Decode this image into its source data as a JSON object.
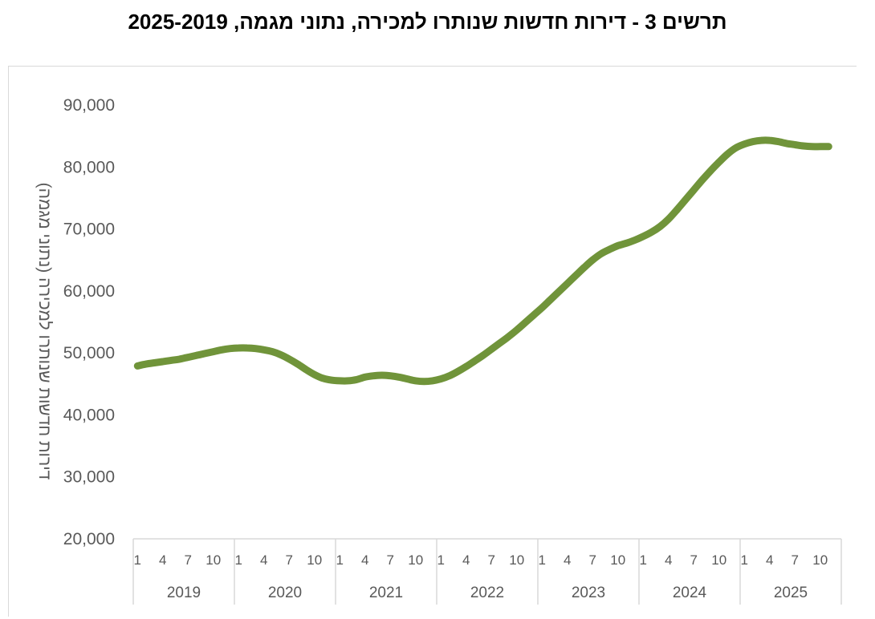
{
  "title": "תרשים 3 - דירות חדשות שנותרו למכירה, נתוני מגמה, 2025-2019",
  "chart_data": {
    "type": "line",
    "title": "תרשים 3 - דירות חדשות שנותרו למכירה, נתוני מגמה, 2025-2019",
    "ylabel": "דירות חדשות שנותרו למכירה (נתוני מגמה)",
    "xlabel": "",
    "ylim": [
      20000,
      90000
    ],
    "yticks": [
      "90,000",
      "80,000",
      "70,000",
      "60,000",
      "50,000",
      "40,000",
      "30,000",
      "20,000"
    ],
    "grid": false,
    "line_color": "#70943a",
    "years": [
      "2019",
      "2020",
      "2021",
      "2022",
      "2023",
      "2024",
      "2025"
    ],
    "month_ticks": [
      "1",
      "4",
      "7",
      "10"
    ],
    "series": [
      {
        "x": [
          "2019-01",
          "2019-02",
          "2019-03",
          "2019-04",
          "2019-05",
          "2019-06",
          "2019-07",
          "2019-08",
          "2019-09",
          "2019-10",
          "2019-11",
          "2019-12",
          "2020-01",
          "2020-02",
          "2020-03",
          "2020-04",
          "2020-05",
          "2020-06",
          "2020-07",
          "2020-08",
          "2020-09",
          "2020-10",
          "2020-11",
          "2020-12",
          "2021-01",
          "2021-02",
          "2021-03",
          "2021-04",
          "2021-05",
          "2021-06",
          "2021-07",
          "2021-08",
          "2021-09",
          "2021-10",
          "2021-11",
          "2021-12",
          "2022-01",
          "2022-02",
          "2022-03",
          "2022-04",
          "2022-05",
          "2022-06",
          "2022-07",
          "2022-08",
          "2022-09",
          "2022-10",
          "2022-11",
          "2022-12",
          "2023-01",
          "2023-02",
          "2023-03",
          "2023-04",
          "2023-05",
          "2023-06",
          "2023-07",
          "2023-08",
          "2023-09",
          "2023-10",
          "2023-11",
          "2023-12",
          "2024-01",
          "2024-02",
          "2024-03",
          "2024-04",
          "2024-05",
          "2024-06",
          "2024-07",
          "2024-08",
          "2024-09",
          "2024-10",
          "2024-11",
          "2024-12",
          "2025-01",
          "2025-02",
          "2025-03",
          "2025-04",
          "2025-05",
          "2025-06",
          "2025-07",
          "2025-08",
          "2025-09",
          "2025-10",
          "2025-11"
        ],
        "values": [
          47900,
          48200,
          48400,
          48600,
          48800,
          49000,
          49300,
          49600,
          49900,
          50200,
          50500,
          50700,
          50800,
          50800,
          50700,
          50500,
          50200,
          49700,
          49000,
          48200,
          47300,
          46500,
          45900,
          45600,
          45500,
          45500,
          45700,
          46100,
          46300,
          46400,
          46300,
          46100,
          45800,
          45500,
          45400,
          45500,
          45800,
          46300,
          47000,
          47800,
          48700,
          49600,
          50600,
          51600,
          52600,
          53700,
          54900,
          56100,
          57300,
          58600,
          59900,
          61200,
          62500,
          63800,
          65000,
          66000,
          66700,
          67300,
          67700,
          68200,
          68800,
          69500,
          70400,
          71600,
          73100,
          74700,
          76300,
          77900,
          79400,
          80800,
          82100,
          83100,
          83700,
          84100,
          84300,
          84300,
          84100,
          83800,
          83600,
          83400,
          83300,
          83300,
          83300
        ]
      }
    ]
  }
}
